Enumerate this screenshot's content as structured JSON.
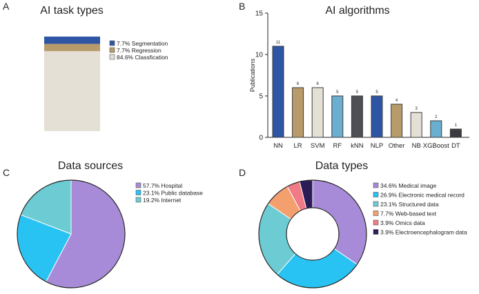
{
  "panel_letters": [
    "A",
    "B",
    "C",
    "D"
  ],
  "colors": {
    "segmentation": "#2f56a5",
    "regression": "#b89b6a",
    "classification": "#e4e0d6",
    "hospital": "#a78bd8",
    "public_database": "#29c3f3",
    "internet": "#6ccbd3",
    "medical_image": "#a78bd8",
    "emr": "#29c3f3",
    "structured": "#6ccbd3",
    "web_text": "#f4a06e",
    "omics": "#f07a86",
    "eeg": "#2b1b57"
  },
  "chart_data": [
    {
      "type": "bar",
      "stacked": true,
      "title": "AI task types",
      "series": [
        {
          "name": "Classfication",
          "label": "84.6% Classfication",
          "value": 84.6,
          "color_key": "classification"
        },
        {
          "name": "Regression",
          "label": "7.7% Regression",
          "value": 7.7,
          "color_key": "regression"
        },
        {
          "name": "Segmentation",
          "label": "7.7% Segmentation",
          "value": 7.7,
          "color_key": "segmentation"
        }
      ],
      "legend_order": [
        "Segmentation",
        "Regression",
        "Classfication"
      ]
    },
    {
      "type": "bar",
      "title": "AI algorithms",
      "ylabel": "Publications",
      "xlabel": "",
      "ylim": [
        0,
        15
      ],
      "yticks": [
        0,
        5,
        10,
        15
      ],
      "categories": [
        "NN",
        "LR",
        "SVM",
        "RF",
        "kNN",
        "NLP",
        "Other",
        "NB",
        "XGBoost",
        "DT"
      ],
      "values": [
        11,
        6,
        6,
        5,
        5,
        5,
        4,
        3,
        2,
        1
      ],
      "bar_colors": [
        "#2f56a5",
        "#b89b6a",
        "#e4e0d6",
        "#6aaed0",
        "#4e4f55",
        "#2f56a5",
        "#b89b6a",
        "#e4e0d6",
        "#6aaed0",
        "#3a3a40"
      ]
    },
    {
      "type": "pie",
      "title": "Data sources",
      "slices": [
        {
          "name": "Hospital",
          "label": "57.7% Hospital",
          "value": 57.7,
          "color_key": "hospital"
        },
        {
          "name": "Public database",
          "label": "23.1% Public database",
          "value": 23.1,
          "color_key": "public_database"
        },
        {
          "name": "Internet",
          "label": "19.2% Internet",
          "value": 19.2,
          "color_key": "internet"
        }
      ]
    },
    {
      "type": "pie",
      "donut": true,
      "title": "Data types",
      "slices": [
        {
          "name": "Medical image",
          "label": "34.6% Medical image",
          "value": 34.6,
          "color_key": "medical_image"
        },
        {
          "name": "Electronic medical record",
          "label": "26.9% Electronic medical record",
          "value": 26.9,
          "color_key": "emr"
        },
        {
          "name": "Structured data",
          "label": "23.1% Structured data",
          "value": 23.1,
          "color_key": "structured"
        },
        {
          "name": "Web-based text",
          "label": "7.7% Web-based text",
          "value": 7.7,
          "color_key": "web_text"
        },
        {
          "name": "Omics data",
          "label": "3.9% Omics data",
          "value": 3.9,
          "color_key": "omics"
        },
        {
          "name": "Electroencephalogram data",
          "label": "3.9% Electroencephalogram data",
          "value": 3.9,
          "color_key": "eeg"
        }
      ]
    }
  ]
}
